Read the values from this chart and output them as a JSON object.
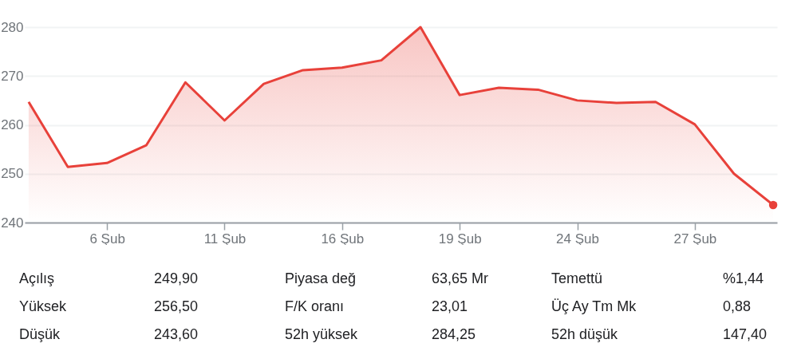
{
  "chart_data": {
    "type": "area",
    "categories": [
      null,
      null,
      "6 Şub",
      null,
      null,
      "11 Şub",
      null,
      null,
      "16 Şub",
      null,
      null,
      "19 Şub",
      null,
      null,
      "24 Şub",
      null,
      null,
      "27 Şub",
      null,
      null
    ],
    "series": [
      {
        "color": "#e8413a",
        "values": [
          264.7,
          251.4,
          252.2,
          255.8,
          268.7,
          260.9,
          268.4,
          271.2,
          271.7,
          273.2,
          280,
          266.1,
          267.6,
          267.2,
          265,
          264.5,
          264.7,
          260.1,
          250,
          243.6
        ]
      },
      {
        "type": "scatter",
        "color": "#e8413a",
        "marker": "circle",
        "values": [
          null,
          null,
          null,
          null,
          null,
          null,
          null,
          null,
          null,
          null,
          null,
          null,
          null,
          null,
          null,
          null,
          null,
          null,
          null,
          243.6
        ]
      }
    ],
    "ylim": [
      240,
      280
    ],
    "yticks": [
      240,
      250,
      260,
      270,
      280
    ],
    "grid": "y",
    "annotations": [
      "Açılış",
      "249,90",
      "Piyasa değ",
      "63,65 Mr",
      "Temettü",
      "%1,44",
      "Yüksek",
      "256,50",
      "F/K oranı",
      "23,01",
      "Üç Ay Tm Mk",
      "0,88",
      "Düşük",
      "243,60",
      "52h yüksek",
      "284,25",
      "52h düşük",
      "147,40"
    ]
  }
}
